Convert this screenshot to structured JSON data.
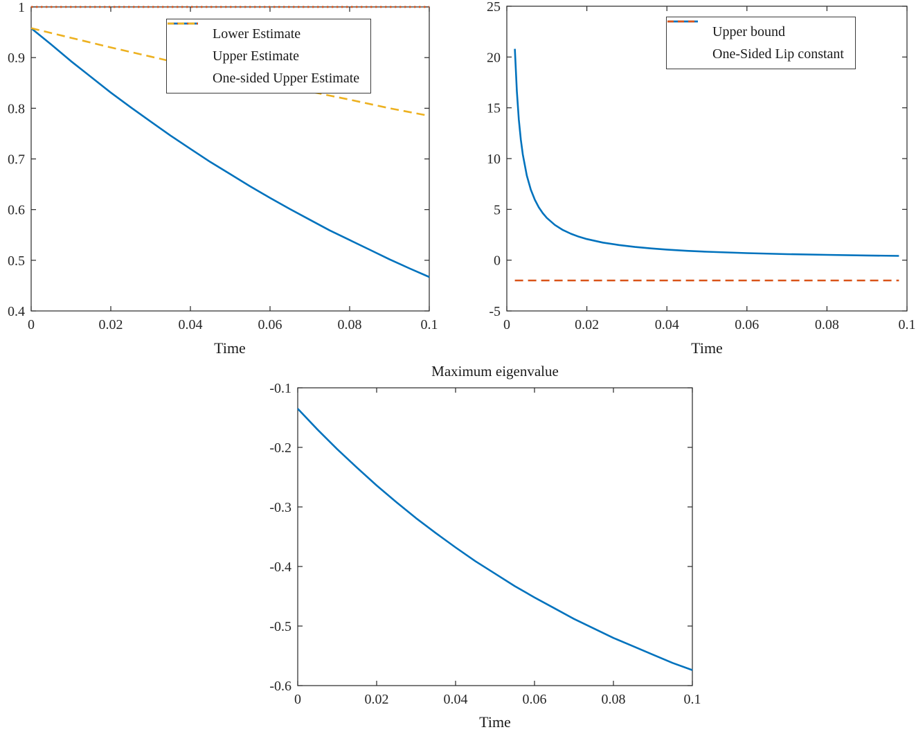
{
  "figure": {
    "background": "#ffffff",
    "axis_color": "#262626",
    "font_color": "#262626"
  },
  "palette": {
    "blue": "#0072BD",
    "orange": "#D95319",
    "yellow": "#EDB120"
  },
  "chart_data": [
    {
      "name": "estimates-plot",
      "type": "line",
      "title": "",
      "xlabel": "Time",
      "ylabel": "",
      "xlim": [
        0,
        0.1
      ],
      "ylim": [
        0.4,
        1.0
      ],
      "xticks": [
        0,
        0.02,
        0.04,
        0.06,
        0.08,
        0.1
      ],
      "xtick_labels": [
        "0",
        "0.02",
        "0.04",
        "0.06",
        "0.08",
        "0.1"
      ],
      "yticks": [
        0.4,
        0.5,
        0.6,
        0.7,
        0.8,
        0.9,
        1.0
      ],
      "ytick_labels": [
        "0.4",
        "0.5",
        "0.6",
        "0.7",
        "0.8",
        "0.9",
        "1"
      ],
      "grid": false,
      "legend_position": "inside-top",
      "series": [
        {
          "name": "Lower Estimate",
          "color": "#0072BD",
          "style": "solid",
          "x": [
            0,
            0.005,
            0.01,
            0.015,
            0.02,
            0.025,
            0.03,
            0.035,
            0.04,
            0.045,
            0.05,
            0.055,
            0.06,
            0.065,
            0.07,
            0.075,
            0.08,
            0.085,
            0.09,
            0.095,
            0.1
          ],
          "y": [
            0.958,
            0.926,
            0.893,
            0.862,
            0.831,
            0.802,
            0.774,
            0.746,
            0.72,
            0.694,
            0.67,
            0.646,
            0.623,
            0.601,
            0.58,
            0.559,
            0.54,
            0.521,
            0.502,
            0.484,
            0.467
          ]
        },
        {
          "name": "Upper Estimate",
          "color": "#D95319",
          "style": "dotted",
          "x": [
            0,
            0.1
          ],
          "y": [
            1.0,
            1.0
          ]
        },
        {
          "name": "One-sided Upper Estimate",
          "color": "#EDB120",
          "style": "dashed",
          "x": [
            0,
            0.01,
            0.02,
            0.03,
            0.04,
            0.05,
            0.06,
            0.07,
            0.08,
            0.09,
            0.1
          ],
          "y": [
            0.958,
            0.939,
            0.92,
            0.902,
            0.884,
            0.867,
            0.85,
            0.833,
            0.817,
            0.8,
            0.785
          ]
        }
      ]
    },
    {
      "name": "upper-bound-plot",
      "type": "line",
      "title": "",
      "xlabel": "Time",
      "ylabel": "",
      "xlim": [
        0,
        0.1
      ],
      "ylim": [
        -5,
        25
      ],
      "xticks": [
        0,
        0.02,
        0.04,
        0.06,
        0.08,
        0.1
      ],
      "xtick_labels": [
        "0",
        "0.02",
        "0.04",
        "0.06",
        "0.08",
        "0.1"
      ],
      "yticks": [
        -5,
        0,
        5,
        10,
        15,
        20,
        25
      ],
      "ytick_labels": [
        "-5",
        "0",
        "5",
        "10",
        "15",
        "20",
        "25"
      ],
      "grid": false,
      "legend_position": "inside-top-right",
      "series": [
        {
          "name": "Upper bound",
          "color": "#0072BD",
          "style": "solid",
          "x": [
            0.002,
            0.0025,
            0.003,
            0.0035,
            0.004,
            0.005,
            0.006,
            0.007,
            0.008,
            0.009,
            0.01,
            0.012,
            0.014,
            0.016,
            0.018,
            0.02,
            0.024,
            0.028,
            0.032,
            0.036,
            0.04,
            0.045,
            0.05,
            0.055,
            0.06,
            0.07,
            0.08,
            0.09,
            0.098
          ],
          "y": [
            20.8,
            16.64,
            13.87,
            11.89,
            10.4,
            8.32,
            6.93,
            5.94,
            5.2,
            4.62,
            4.16,
            3.47,
            2.97,
            2.6,
            2.31,
            2.08,
            1.73,
            1.49,
            1.3,
            1.16,
            1.04,
            0.92,
            0.83,
            0.76,
            0.69,
            0.59,
            0.52,
            0.46,
            0.42
          ]
        },
        {
          "name": "One-Sided Lip constant",
          "color": "#D95319",
          "style": "dashed",
          "x": [
            0.002,
            0.098
          ],
          "y": [
            -2,
            -2
          ]
        }
      ]
    },
    {
      "name": "max-eigenvalue-plot",
      "type": "line",
      "title": "Maximum eigenvalue",
      "xlabel": "Time",
      "ylabel": "",
      "xlim": [
        0,
        0.1
      ],
      "ylim": [
        -0.6,
        -0.1
      ],
      "xticks": [
        0,
        0.02,
        0.04,
        0.06,
        0.08,
        0.1
      ],
      "xtick_labels": [
        "0",
        "0.02",
        "0.04",
        "0.06",
        "0.08",
        "0.1"
      ],
      "yticks": [
        -0.6,
        -0.5,
        -0.4,
        -0.3,
        -0.2,
        -0.1
      ],
      "ytick_labels": [
        "-0.6",
        "-0.5",
        "-0.4",
        "-0.3",
        "-0.2",
        "-0.1"
      ],
      "grid": false,
      "legend_position": "none",
      "series": [
        {
          "name": "Maximum eigenvalue",
          "color": "#0072BD",
          "style": "solid",
          "x": [
            0,
            0.005,
            0.01,
            0.015,
            0.02,
            0.025,
            0.03,
            0.035,
            0.04,
            0.045,
            0.05,
            0.055,
            0.06,
            0.065,
            0.07,
            0.075,
            0.08,
            0.085,
            0.09,
            0.095,
            0.1
          ],
          "y": [
            -0.135,
            -0.17,
            -0.203,
            -0.234,
            -0.264,
            -0.292,
            -0.319,
            -0.344,
            -0.368,
            -0.391,
            -0.412,
            -0.433,
            -0.452,
            -0.47,
            -0.488,
            -0.504,
            -0.52,
            -0.534,
            -0.548,
            -0.562,
            -0.574
          ]
        }
      ]
    }
  ]
}
